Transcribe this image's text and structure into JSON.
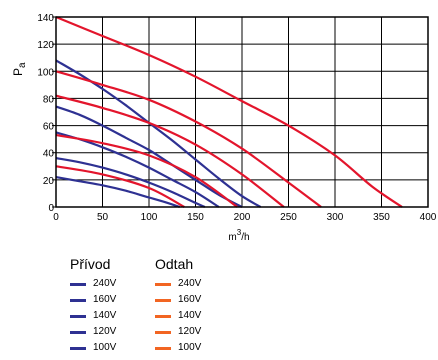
{
  "chart_data": {
    "type": "line",
    "ylabel": "Pa",
    "xlabel": "m³/h",
    "xlim": [
      0,
      400
    ],
    "ylim": [
      0,
      140
    ],
    "xticks": [
      0,
      50,
      100,
      150,
      200,
      250,
      300,
      350,
      400
    ],
    "yticks": [
      0,
      20,
      40,
      60,
      80,
      100,
      120,
      140
    ],
    "grid": true,
    "colors": {
      "privod": "#2e3192",
      "odtah_curve": "#e3152c",
      "odtah_legend": "#f26522"
    },
    "groups": [
      {
        "title": "Přívod",
        "color": "#2e3192",
        "series": [
          {
            "name": "240V",
            "x": [
              0,
              25,
              50,
              75,
              100,
              125,
              150,
              175,
              200,
              220
            ],
            "y": [
              108,
              98,
              87,
              75,
              62,
              49,
              35,
              21,
              8,
              0
            ]
          },
          {
            "name": "160V",
            "x": [
              0,
              25,
              50,
              75,
              100,
              125,
              150,
              175,
              200
            ],
            "y": [
              74,
              68,
              60,
              51,
              42,
              31,
              20,
              9,
              0
            ]
          },
          {
            "name": "140V",
            "x": [
              0,
              25,
              50,
              75,
              100,
              125,
              150,
              175
            ],
            "y": [
              55,
              50,
              44,
              37,
              29,
              20,
              11,
              0
            ]
          },
          {
            "name": "120V",
            "x": [
              0,
              25,
              50,
              75,
              100,
              125,
              150,
              160
            ],
            "y": [
              36,
              33,
              29,
              24,
              18,
              11,
              3,
              0
            ]
          },
          {
            "name": "100V",
            "x": [
              0,
              25,
              50,
              75,
              100,
              120,
              133
            ],
            "y": [
              22,
              19,
              16,
              12,
              7,
              3,
              0
            ]
          }
        ]
      },
      {
        "title": "Odtah",
        "color": "#e3152c",
        "series": [
          {
            "name": "240V",
            "x": [
              0,
              50,
              100,
              150,
              200,
              250,
              300,
              340,
              372
            ],
            "y": [
              140,
              126,
              112,
              96,
              78,
              60,
              38,
              15,
              0
            ]
          },
          {
            "name": "160V",
            "x": [
              0,
              50,
              100,
              150,
              200,
              250,
              285
            ],
            "y": [
              100,
              90,
              79,
              63,
              43,
              18,
              0
            ]
          },
          {
            "name": "140V",
            "x": [
              0,
              50,
              100,
              150,
              200,
              245
            ],
            "y": [
              82,
              73,
              62,
              46,
              24,
              0
            ]
          },
          {
            "name": "120V",
            "x": [
              0,
              50,
              100,
              150,
              195
            ],
            "y": [
              53,
              47,
              38,
              22,
              0
            ]
          },
          {
            "name": "100V",
            "x": [
              0,
              50,
              100,
              138
            ],
            "y": [
              30,
              24,
              14,
              0
            ]
          }
        ]
      }
    ]
  },
  "legend": {
    "privod": {
      "title": "Přívod",
      "items": [
        "240V",
        "160V",
        "140V",
        "120V",
        "100V"
      ]
    },
    "odtah": {
      "title": "Odtah",
      "items": [
        "240V",
        "160V",
        "140V",
        "120V",
        "100V"
      ]
    }
  },
  "axis_text": {
    "ylabel_main": "P",
    "ylabel_sub": "a",
    "xlabel_main": "m",
    "xlabel_sup": "3",
    "xlabel_tail": "/h"
  }
}
